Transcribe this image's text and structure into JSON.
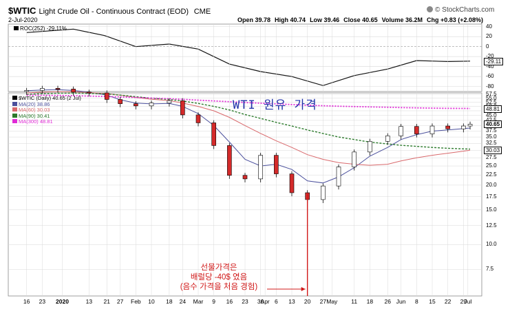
{
  "header": {
    "symbol": "$WTIC",
    "description": "Light Crude Oil - Continuous Contract (EOD)",
    "exchange": "CME",
    "date": "2-Jul-2020",
    "quote": [
      {
        "label": "Open",
        "value": "39.78"
      },
      {
        "label": "High",
        "value": "40.74"
      },
      {
        "label": "Low",
        "value": "39.46"
      },
      {
        "label": "Close",
        "value": "40.65"
      },
      {
        "label": "Volume",
        "value": "36.2M"
      },
      {
        "label": "Chg",
        "value": "+0.83 (+2.08%)"
      }
    ],
    "brand": "© StockCharts.com"
  },
  "roc_panel": {
    "legend": "ROC(252) -29.11%",
    "last_label": "-29.11",
    "y_ticks": [
      40,
      20,
      0,
      -20,
      -40,
      -60,
      -80
    ]
  },
  "price_panel": {
    "legend": [
      {
        "text": "$WTIC (Daily) 40.65 (2 Jul)",
        "color": "#000000"
      },
      {
        "text": "MA(20) 38.86",
        "color": "#4a4f9c"
      },
      {
        "text": "MA(60) 30.03",
        "color": "#d9686b"
      },
      {
        "text": "MA(90) 30.41",
        "color": "#2b7a2b"
      },
      {
        "text": "MA(300) 48.81",
        "color": "#e02ad6"
      }
    ],
    "overlay_title": "WTI 원유 가격",
    "annotation": [
      "선물가격은",
      "배럴당 -40$ 였음",
      "(음수 가격을 처음 경험)"
    ],
    "y_ticks": [
      "57.5",
      "55.0",
      "52.5",
      "50.0",
      "47.5",
      "45.0",
      "42.5",
      "40.0",
      "37.5",
      "35.0",
      "32.5",
      "30.0",
      "27.5",
      "25.0",
      "22.5",
      "20.0",
      "17.5",
      "15.0",
      "12.5",
      "10.0",
      "7.5"
    ],
    "badges": [
      {
        "text": "48.81",
        "value": 48.81
      },
      {
        "text": "40.65",
        "value": 40.65
      },
      {
        "text": "30.03",
        "value": 30.03
      }
    ]
  },
  "x_axis": [
    "16",
    "23",
    "2020",
    "13",
    "21",
    "27",
    "Feb",
    "10",
    "18",
    "24",
    "Mar",
    "9",
    "16",
    "23",
    "30",
    "Apr",
    "6",
    "13",
    "20",
    "27",
    "May",
    "11",
    "18",
    "26",
    "Jun",
    "8",
    "15",
    "22",
    "29",
    "Jul"
  ],
  "chart_data": [
    {
      "type": "line",
      "title": "ROC(252)",
      "ylim": [
        -90,
        45
      ],
      "x": [
        "2019-12-16",
        "2020-01-06",
        "2020-01-20",
        "2020-02-03",
        "2020-02-18",
        "2020-03-02",
        "2020-03-16",
        "2020-03-30",
        "2020-04-13",
        "2020-04-27",
        "2020-05-11",
        "2020-05-26",
        "2020-06-08",
        "2020-06-22",
        "2020-07-02"
      ],
      "values": [
        28,
        35,
        22,
        0,
        5,
        -5,
        -35,
        -50,
        -60,
        -78,
        -58,
        -45,
        -28,
        -30,
        -29.11
      ]
    },
    {
      "type": "candlestick",
      "title": "$WTIC (Daily)",
      "ylim": [
        5.5,
        58.5
      ],
      "x": [
        "2019-12-16",
        "2019-12-23",
        "2019-12-30",
        "2020-01-06",
        "2020-01-13",
        "2020-01-21",
        "2020-01-27",
        "2020-02-03",
        "2020-02-10",
        "2020-02-18",
        "2020-02-24",
        "2020-03-02",
        "2020-03-09",
        "2020-03-16",
        "2020-03-23",
        "2020-03-30",
        "2020-04-06",
        "2020-04-13",
        "2020-04-20",
        "2020-04-27",
        "2020-05-04",
        "2020-05-11",
        "2020-05-18",
        "2020-05-26",
        "2020-06-01",
        "2020-06-08",
        "2020-06-15",
        "2020-06-22",
        "2020-06-29",
        "2020-07-02"
      ],
      "close": [
        60.2,
        61.7,
        61.2,
        59.0,
        58.5,
        54.2,
        51.6,
        50.3,
        52.0,
        53.4,
        45.3,
        41.3,
        31.7,
        22.4,
        21.5,
        28.3,
        22.8,
        18.3,
        16.9,
        19.8,
        24.7,
        29.4,
        33.3,
        35.5,
        39.6,
        36.3,
        39.8,
        38.5,
        39.8,
        40.65
      ],
      "series": [
        {
          "name": "MA(20)",
          "values": [
            60.0,
            60.5,
            60.8,
            60.2,
            59.0,
            57.0,
            54.0,
            52.0,
            51.5,
            51.8,
            50.0,
            46.0,
            40.0,
            33.0,
            27.0,
            25.0,
            25.5,
            24.0,
            21.0,
            20.5,
            22.0,
            24.5,
            28.0,
            31.0,
            34.0,
            36.0,
            37.5,
            38.0,
            38.6,
            38.86
          ]
        },
        {
          "name": "MA(60)",
          "values": [
            58.5,
            59.0,
            59.4,
            59.2,
            58.8,
            58.0,
            57.0,
            55.5,
            54.3,
            53.5,
            52.0,
            50.0,
            47.5,
            44.0,
            40.0,
            36.5,
            33.5,
            31.0,
            28.5,
            27.0,
            26.0,
            25.5,
            25.2,
            25.5,
            26.5,
            27.5,
            28.3,
            29.0,
            29.7,
            30.03
          ]
        },
        {
          "name": "MA(90)",
          "values": [
            57.5,
            58.0,
            58.3,
            58.4,
            58.2,
            57.8,
            57.0,
            56.0,
            55.0,
            54.2,
            53.2,
            51.8,
            50.0,
            48.0,
            45.5,
            43.5,
            41.5,
            39.8,
            38.0,
            36.5,
            35.0,
            34.0,
            33.0,
            32.3,
            31.8,
            31.4,
            31.0,
            30.7,
            30.5,
            30.41
          ]
        },
        {
          "name": "MA(300)",
          "values": [
            57.0,
            56.9,
            56.8,
            56.6,
            56.4,
            56.1,
            55.8,
            55.5,
            55.1,
            54.7,
            54.3,
            53.8,
            53.3,
            52.8,
            52.3,
            51.9,
            51.5,
            51.1,
            50.7,
            50.4,
            50.1,
            49.9,
            49.7,
            49.5,
            49.3,
            49.15,
            49.0,
            48.9,
            48.85,
            48.81
          ]
        }
      ],
      "annotation_low": -40
    }
  ],
  "colors": {
    "ma20": "#4a4f9c",
    "ma60": "#d9686b",
    "ma90": "#2b7a2b",
    "ma300": "#e02ad6",
    "up": "#ffffff",
    "down": "#d42a2a",
    "grid": "#d8d8d8",
    "annotation": "#d01818"
  }
}
